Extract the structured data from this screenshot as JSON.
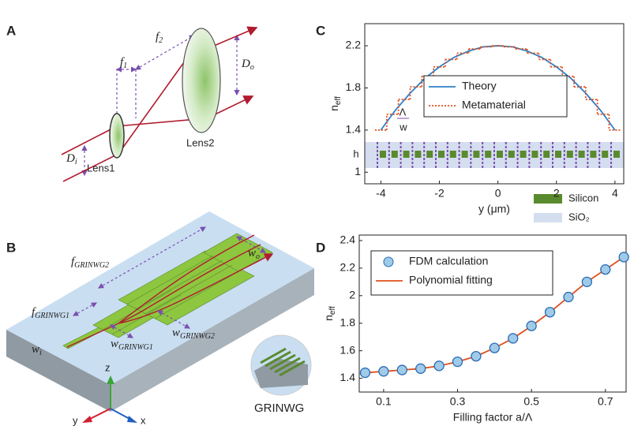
{
  "panels": [
    "A",
    "B",
    "C",
    "D"
  ],
  "diagram_a": {
    "f1": {
      "text": "f",
      "sub": "1"
    },
    "f2": {
      "text": "f",
      "sub": "2"
    },
    "do": {
      "text": "D",
      "sub": "o"
    },
    "di": {
      "text": "D",
      "sub": "i"
    },
    "lens1": "Lens1",
    "lens2": "Lens2"
  },
  "diagram_b": {
    "f_grinwg2": {
      "text": "f",
      "sub": "GRINWG2"
    },
    "f_grinwg1": {
      "text": "f",
      "sub": "GRINWG1"
    },
    "w_o": {
      "text": "w",
      "sub": "o"
    },
    "w_i": {
      "text": "w",
      "sub": "i"
    },
    "w_grinwg1": {
      "text": "w",
      "sub": "GRINWG1"
    },
    "w_grinwg2": {
      "text": "w",
      "sub": "GRINWG2"
    },
    "axis_z": "z",
    "axis_y": "y",
    "axis_x": "x",
    "inset": "GRINWG"
  },
  "chart_data": [
    {
      "type": "line",
      "xlabel": "y (μm)",
      "ylabel": {
        "text": "n",
        "sub": "eff"
      },
      "xlim": [
        -4.55,
        4.3
      ],
      "ylim": [
        0.89,
        2.41
      ],
      "xticks": [
        -4,
        -2,
        0,
        2,
        4
      ],
      "yticks": [
        1,
        1.4,
        1.8,
        2.2
      ],
      "legend": "upper center",
      "series": [
        {
          "name": "Theory",
          "color": "#2f7fc8",
          "line_style": "solid",
          "x": [
            -4,
            -3.5,
            -3,
            -2.5,
            -2,
            -1.5,
            -1,
            -0.5,
            0,
            0.5,
            1,
            1.5,
            2,
            2.5,
            3,
            3.5,
            4
          ],
          "values": [
            1.4,
            1.59,
            1.75,
            1.89,
            2.0,
            2.09,
            2.15,
            2.19,
            2.2,
            2.19,
            2.15,
            2.09,
            2.0,
            1.89,
            1.75,
            1.59,
            1.4
          ]
        },
        {
          "name": "Metamaterial",
          "color": "#e0501e",
          "line_style": "dotted",
          "drawstyle": "steps-mid",
          "x": [
            -4,
            -3.6,
            -3.2,
            -2.8,
            -2.4,
            -2,
            -1.6,
            -1.2,
            -0.8,
            -0.4,
            0,
            0.4,
            0.8,
            1.2,
            1.6,
            2,
            2.4,
            2.8,
            3.2,
            3.6,
            4
          ],
          "values": [
            1.4,
            1.55,
            1.69,
            1.81,
            1.91,
            2.0,
            2.07,
            2.13,
            2.17,
            2.19,
            2.2,
            2.19,
            2.17,
            2.13,
            2.07,
            2.0,
            1.91,
            1.81,
            1.69,
            1.55,
            1.4
          ]
        }
      ],
      "annotations": {
        "period": "Λ",
        "width": "w",
        "height": "h"
      },
      "materials": [
        {
          "name": "Silicon",
          "color": "#5a8a2e"
        },
        {
          "name": "SiO₂",
          "color": "#d5deef"
        }
      ]
    },
    {
      "type": "line",
      "xlabel": "Filling factor a/Λ",
      "ylabel": {
        "text": "n",
        "sub": "eff"
      },
      "xlim": [
        0.034,
        0.756
      ],
      "ylim": [
        1.3,
        2.44
      ],
      "xticks": [
        0.1,
        0.3,
        0.5,
        0.7
      ],
      "yticks": [
        1.4,
        1.6,
        1.8,
        2,
        2.2,
        2.4
      ],
      "legend": "upper left",
      "series": [
        {
          "name": "FDM calculation",
          "color": "#9fcbe8",
          "marker": "circle",
          "x": [
            0.05,
            0.1,
            0.15,
            0.2,
            0.25,
            0.3,
            0.35,
            0.4,
            0.45,
            0.5,
            0.55,
            0.6,
            0.65,
            0.7,
            0.75
          ],
          "values": [
            1.44,
            1.45,
            1.46,
            1.47,
            1.49,
            1.52,
            1.56,
            1.62,
            1.69,
            1.78,
            1.88,
            1.99,
            2.1,
            2.19,
            2.28
          ]
        },
        {
          "name": "Polynomial fitting",
          "color": "#e0501e",
          "line_style": "solid",
          "x": [
            0.05,
            0.1,
            0.15,
            0.2,
            0.25,
            0.3,
            0.35,
            0.4,
            0.45,
            0.5,
            0.55,
            0.6,
            0.65,
            0.7,
            0.75
          ],
          "values": [
            1.44,
            1.45,
            1.46,
            1.47,
            1.49,
            1.52,
            1.56,
            1.62,
            1.69,
            1.78,
            1.88,
            1.99,
            2.1,
            2.19,
            2.28
          ]
        }
      ]
    }
  ]
}
